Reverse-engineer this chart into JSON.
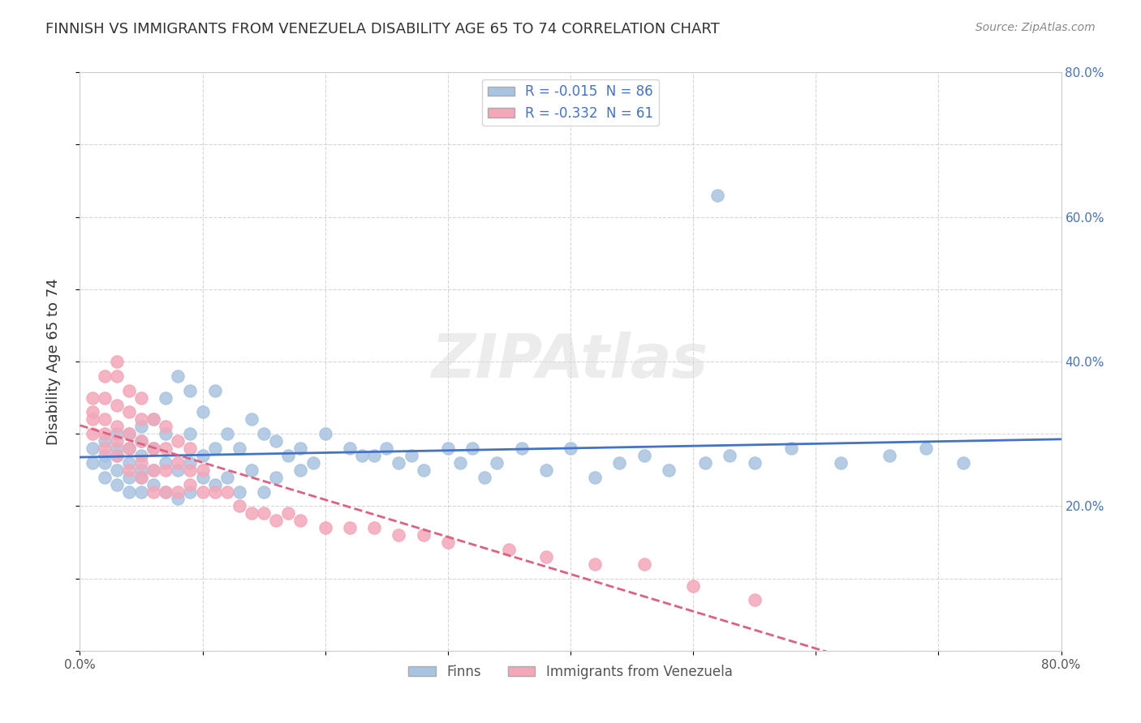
{
  "title": "FINNISH VS IMMIGRANTS FROM VENEZUELA DISABILITY AGE 65 TO 74 CORRELATION CHART",
  "source": "Source: ZipAtlas.com",
  "ylabel": "Disability Age 65 to 74",
  "xlim": [
    0,
    0.8
  ],
  "ylim": [
    0,
    0.8
  ],
  "background_color": "#ffffff",
  "grid_color": "#cccccc",
  "watermark": "ZIPAtlas",
  "series": [
    {
      "name": "Finns",
      "R": -0.015,
      "N": 86,
      "color": "#a8c4e0",
      "line_color": "#4472c4",
      "line_dash": "solid",
      "x": [
        0.01,
        0.01,
        0.02,
        0.02,
        0.02,
        0.02,
        0.03,
        0.03,
        0.03,
        0.03,
        0.03,
        0.04,
        0.04,
        0.04,
        0.04,
        0.04,
        0.05,
        0.05,
        0.05,
        0.05,
        0.05,
        0.05,
        0.06,
        0.06,
        0.06,
        0.06,
        0.07,
        0.07,
        0.07,
        0.07,
        0.08,
        0.08,
        0.08,
        0.09,
        0.09,
        0.09,
        0.09,
        0.1,
        0.1,
        0.1,
        0.11,
        0.11,
        0.11,
        0.12,
        0.12,
        0.13,
        0.13,
        0.14,
        0.14,
        0.15,
        0.15,
        0.16,
        0.16,
        0.17,
        0.18,
        0.18,
        0.19,
        0.2,
        0.22,
        0.23,
        0.24,
        0.25,
        0.26,
        0.27,
        0.28,
        0.3,
        0.31,
        0.32,
        0.33,
        0.34,
        0.36,
        0.38,
        0.4,
        0.42,
        0.44,
        0.46,
        0.48,
        0.51,
        0.53,
        0.55,
        0.58,
        0.62,
        0.66,
        0.69,
        0.72,
        0.52
      ],
      "y": [
        0.26,
        0.28,
        0.24,
        0.26,
        0.27,
        0.29,
        0.23,
        0.25,
        0.27,
        0.28,
        0.3,
        0.22,
        0.24,
        0.26,
        0.28,
        0.3,
        0.22,
        0.24,
        0.25,
        0.27,
        0.29,
        0.31,
        0.23,
        0.25,
        0.28,
        0.32,
        0.22,
        0.26,
        0.3,
        0.35,
        0.21,
        0.25,
        0.38,
        0.22,
        0.26,
        0.3,
        0.36,
        0.24,
        0.27,
        0.33,
        0.23,
        0.28,
        0.36,
        0.24,
        0.3,
        0.22,
        0.28,
        0.25,
        0.32,
        0.22,
        0.3,
        0.24,
        0.29,
        0.27,
        0.25,
        0.28,
        0.26,
        0.3,
        0.28,
        0.27,
        0.27,
        0.28,
        0.26,
        0.27,
        0.25,
        0.28,
        0.26,
        0.28,
        0.24,
        0.26,
        0.28,
        0.25,
        0.28,
        0.24,
        0.26,
        0.27,
        0.25,
        0.26,
        0.27,
        0.26,
        0.28,
        0.26,
        0.27,
        0.28,
        0.26,
        0.63
      ]
    },
    {
      "name": "Immigrants from Venezuela",
      "R": -0.332,
      "N": 61,
      "color": "#f4a7b9",
      "line_color": "#e06080",
      "line_dash": "dashed",
      "x": [
        0.01,
        0.01,
        0.01,
        0.01,
        0.02,
        0.02,
        0.02,
        0.02,
        0.02,
        0.03,
        0.03,
        0.03,
        0.03,
        0.03,
        0.03,
        0.04,
        0.04,
        0.04,
        0.04,
        0.04,
        0.05,
        0.05,
        0.05,
        0.05,
        0.05,
        0.06,
        0.06,
        0.06,
        0.06,
        0.07,
        0.07,
        0.07,
        0.07,
        0.08,
        0.08,
        0.08,
        0.09,
        0.09,
        0.09,
        0.1,
        0.1,
        0.11,
        0.12,
        0.13,
        0.14,
        0.15,
        0.16,
        0.17,
        0.18,
        0.2,
        0.22,
        0.24,
        0.26,
        0.28,
        0.3,
        0.35,
        0.38,
        0.42,
        0.46,
        0.5,
        0.55
      ],
      "y": [
        0.3,
        0.32,
        0.33,
        0.35,
        0.28,
        0.3,
        0.32,
        0.35,
        0.38,
        0.27,
        0.29,
        0.31,
        0.34,
        0.38,
        0.4,
        0.25,
        0.28,
        0.3,
        0.33,
        0.36,
        0.24,
        0.26,
        0.29,
        0.32,
        0.35,
        0.22,
        0.25,
        0.28,
        0.32,
        0.22,
        0.25,
        0.28,
        0.31,
        0.22,
        0.26,
        0.29,
        0.23,
        0.25,
        0.28,
        0.22,
        0.25,
        0.22,
        0.22,
        0.2,
        0.19,
        0.19,
        0.18,
        0.19,
        0.18,
        0.17,
        0.17,
        0.17,
        0.16,
        0.16,
        0.15,
        0.14,
        0.13,
        0.12,
        0.12,
        0.09,
        0.07
      ]
    }
  ]
}
